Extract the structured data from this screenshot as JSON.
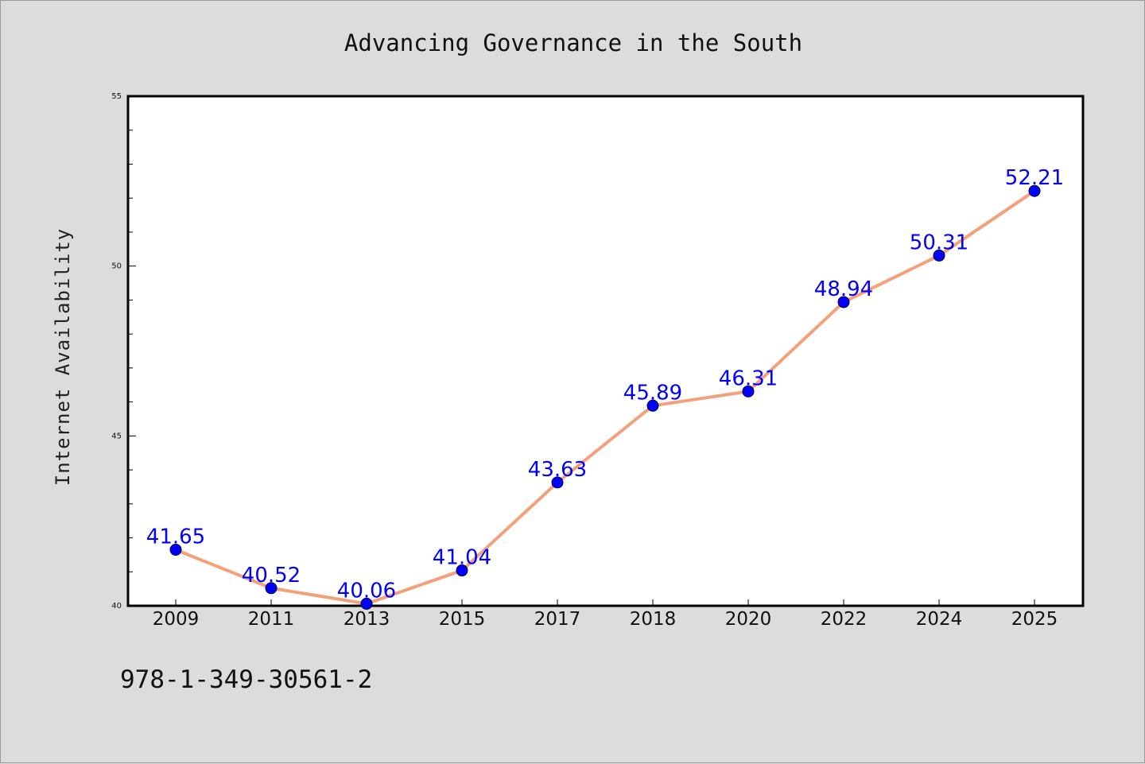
{
  "chart_data": {
    "type": "line",
    "title": "Advancing Governance in the South",
    "xlabel": "",
    "ylabel": "Internet Availability",
    "categories": [
      "2009",
      "2011",
      "2013",
      "2015",
      "2017",
      "2018",
      "2020",
      "2022",
      "2024",
      "2025"
    ],
    "series": [
      {
        "values": [
          41.65,
          40.52,
          40.06,
          41.04,
          43.63,
          45.89,
          46.31,
          48.94,
          50.31,
          52.21
        ],
        "data_labels": [
          "41.65",
          "40.52",
          "40.06",
          "41.04",
          "43.63",
          "45.89",
          "46.31",
          "48.94",
          "50.31",
          "52.21"
        ],
        "line_color": "#f4a07a",
        "marker_color": "#0000ff"
      }
    ],
    "ylim": [
      40,
      55
    ],
    "yticks": [
      "40",
      "45",
      "50",
      "55"
    ],
    "grid": false,
    "legend": "none"
  },
  "footer": {
    "isbn": "978-1-349-30561-2"
  }
}
